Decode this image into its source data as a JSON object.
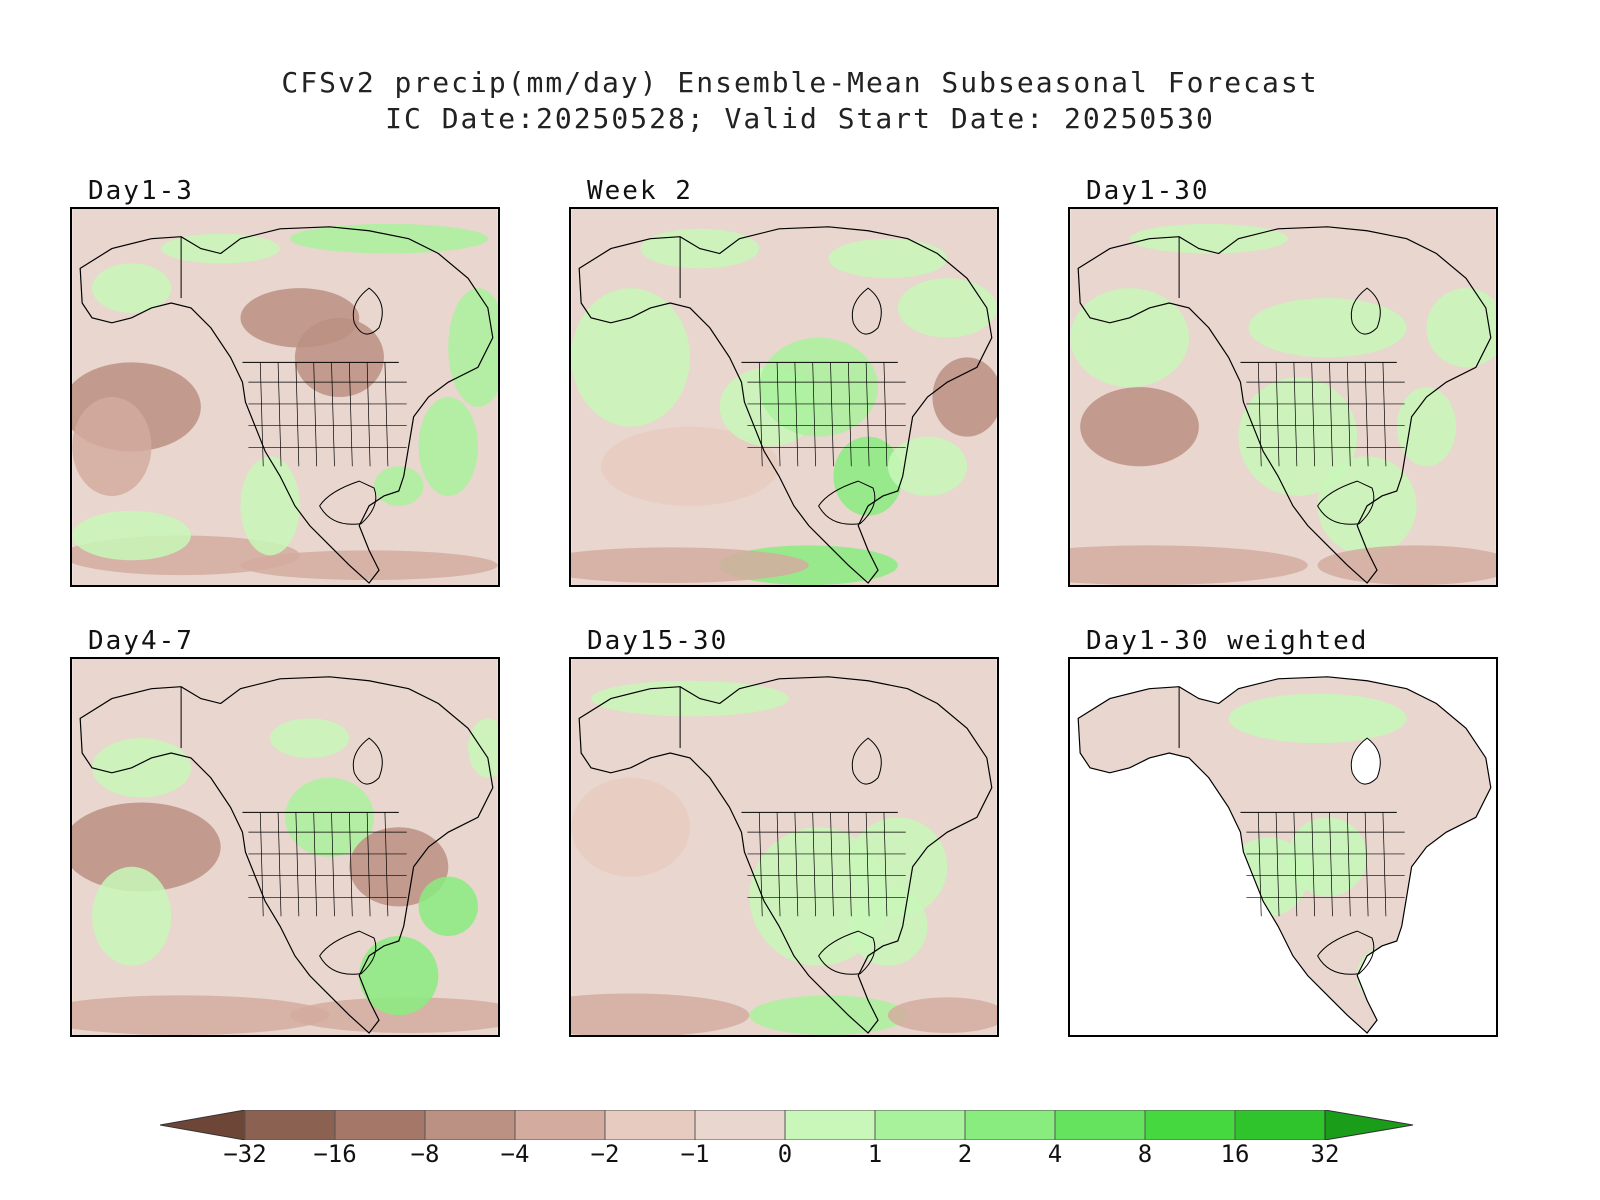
{
  "title": {
    "line1": "CFSv2 precip(mm/day) Ensemble-Mean Subseasonal Forecast",
    "line2": "IC Date:20250528; Valid Start Date: 20250530"
  },
  "panels": [
    {
      "id": "day1-3",
      "label": "Day1-3",
      "theme": "mixed-dry"
    },
    {
      "id": "week2",
      "label": "Week 2",
      "theme": "mixed-wet"
    },
    {
      "id": "day1-30",
      "label": "Day1-30",
      "theme": "mixed"
    },
    {
      "id": "day4-7",
      "label": "Day4-7",
      "theme": "mixed-dry2"
    },
    {
      "id": "day15-30",
      "label": "Day15-30",
      "theme": "dry"
    },
    {
      "id": "day1-30-weighted",
      "label": "Day1-30 weighted",
      "theme": "land-only"
    }
  ],
  "colorbar": {
    "ticks": [
      "−32",
      "−16",
      "−8",
      "−4",
      "−2",
      "−1",
      "0",
      "1",
      "2",
      "4",
      "8",
      "16",
      "32"
    ],
    "colors": [
      "#6e4638",
      "#8b6152",
      "#a47769",
      "#bb9183",
      "#d3ab9f",
      "#e7cbc0",
      "#e8d6cf",
      "#c8f7b9",
      "#a9f29c",
      "#89ec7f",
      "#66e35e",
      "#46d93f",
      "#2fc32c",
      "#1a9e1a"
    ]
  }
}
